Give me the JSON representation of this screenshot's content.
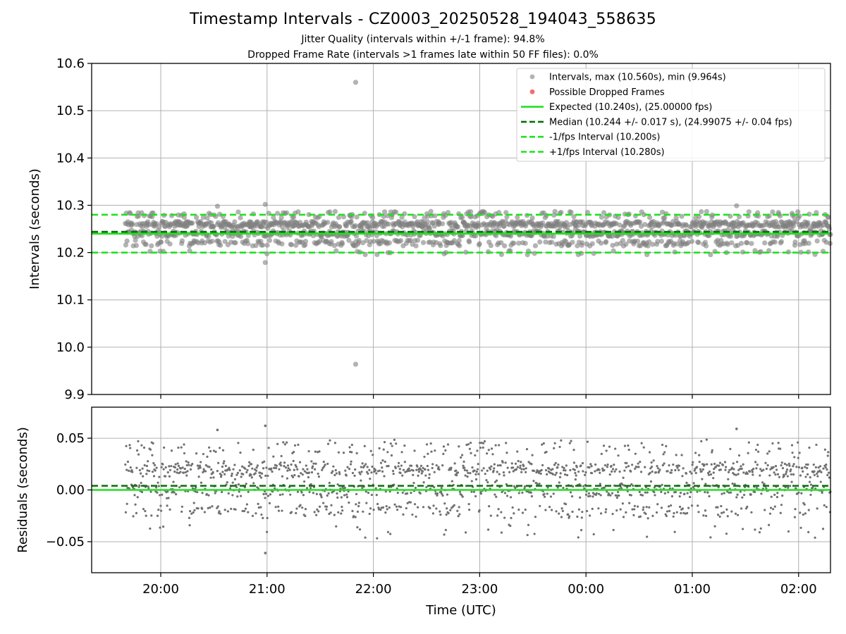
{
  "chart_data": [
    {
      "type": "scatter",
      "title": "Timestamp Intervals - CZ0003_20250528_194043_558635",
      "subtitle_lines": [
        "Jitter Quality (intervals within +/-1 frame): 94.8%",
        "Dropped Frame Rate (intervals >1 frames late within 50 FF files): 0.0%"
      ],
      "xlabel": "",
      "ylabel": "Intervals (seconds)",
      "ylim": [
        9.9,
        10.6
      ],
      "yticks": [
        "9.9",
        "10.0",
        "10.1",
        "10.2",
        "10.3",
        "10.4",
        "10.5",
        "10.6"
      ],
      "xlim_hours": [
        19.35,
        26.3
      ],
      "grid": true,
      "legend_position": "top-right",
      "series": [
        {
          "name": "Intervals, max (10.560s), min (9.964s)",
          "color": "#808080",
          "start_time": "19:40",
          "end_time": "02:18",
          "interval_band": [
            10.2,
            10.3
          ],
          "notable_points": [
            {
              "x": "21:50",
              "y": 10.56
            },
            {
              "x": "21:50",
              "y": 9.964
            },
            {
              "x": "20:59",
              "y": 10.302
            },
            {
              "x": "20:59",
              "y": 10.179
            },
            {
              "x": "01:25",
              "y": 10.299
            },
            {
              "x": "20:32",
              "y": 10.298
            }
          ]
        },
        {
          "name": "Possible Dropped Frames",
          "color": "#f25d5d",
          "points": []
        }
      ],
      "reference_lines": [
        {
          "name": "Expected (10.240s), (25.00000 fps)",
          "y": 10.24,
          "style": "solid",
          "color": "#22e022"
        },
        {
          "name": "Median (10.244 +/- 0.017 s), (24.99075 +/- 0.04 fps)",
          "y": 10.244,
          "style": "dashed",
          "color": "#0a6e0a"
        },
        {
          "name": "-1/fps Interval (10.200s)",
          "y": 10.2,
          "style": "dashed",
          "color": "#22e022"
        },
        {
          "name": "+1/fps Interval (10.280s)",
          "y": 10.28,
          "style": "dashed",
          "color": "#22e022"
        }
      ]
    },
    {
      "type": "scatter",
      "xlabel": "Time (UTC)",
      "ylabel": "Residuals (seconds)",
      "ylim": [
        -0.08,
        0.08
      ],
      "yticks": [
        "−0.05",
        "0.00",
        "0.05"
      ],
      "ytick_values": [
        -0.05,
        0.0,
        0.05
      ],
      "xticks": [
        "20:00",
        "21:00",
        "22:00",
        "23:00",
        "00:00",
        "01:00",
        "02:00"
      ],
      "xtick_hours": [
        20,
        21,
        22,
        23,
        24,
        25,
        26
      ],
      "xlim_hours": [
        19.35,
        26.3
      ],
      "grid": true,
      "series": [
        {
          "name": "Residuals",
          "color": "#707070",
          "range": [
            -0.062,
            0.062
          ]
        }
      ],
      "reference_lines": [
        {
          "y": 0.0,
          "style": "solid",
          "color": "#22e022"
        },
        {
          "y": 0.004,
          "style": "dashed",
          "color": "#0a6e0a"
        }
      ]
    }
  ]
}
